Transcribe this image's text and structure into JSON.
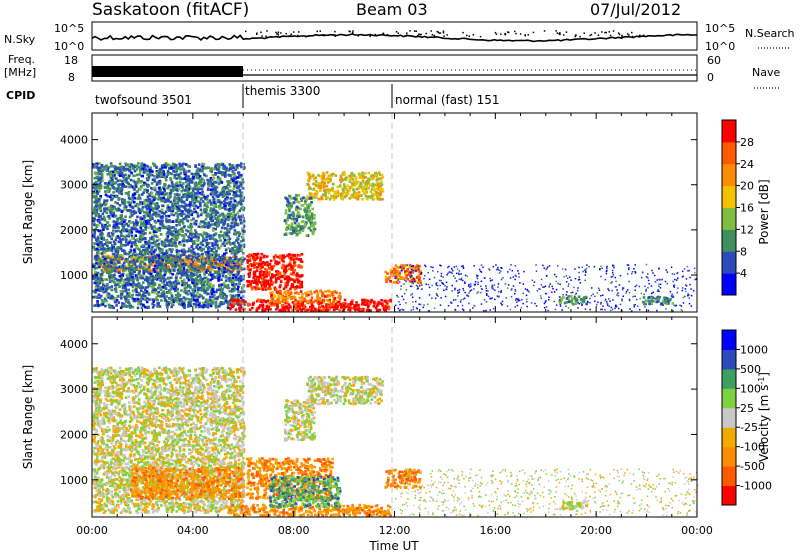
{
  "header": {
    "station": "Saskatoon (fitACF)",
    "beam": "Beam 03",
    "date": "07/Jul/2012"
  },
  "strips": {
    "nsky_label": "N.Sky",
    "nsky_ticks": [
      "10^5",
      "10^0"
    ],
    "nsearch_label": "N.Search",
    "nsearch_ticks": [
      "10^5",
      "10^0"
    ],
    "freq_label_1": "Freq.",
    "freq_label_2": "[MHz]",
    "freq_ticks": [
      "18",
      "8"
    ],
    "nave_label": "Nave",
    "nave_ticks": [
      "60",
      "0"
    ],
    "cpid_label": "CPID",
    "cpid_segments": [
      {
        "label": "twofsound 3501",
        "start_hour": 0,
        "end_hour": 6
      },
      {
        "label": "themis 3300",
        "start_hour": 6,
        "end_hour": 12
      },
      {
        "label": "normal (fast) 151",
        "start_hour": 12,
        "end_hour": 24
      }
    ]
  },
  "chart_data": [
    {
      "type": "heatmap",
      "name": "power",
      "ylabel": "Slant Range [km]",
      "xlabel": "",
      "xlim": [
        0,
        24
      ],
      "ylim": [
        180,
        4590
      ],
      "y_ticks": [
        1000,
        2000,
        3000,
        4000
      ],
      "colorbar_label": "Power [dB]",
      "colorbar_ticks": [
        "28",
        "24",
        "20",
        "16",
        "12",
        "8",
        "4"
      ],
      "colors": [
        "#0000ff",
        "#2a4bb8",
        "#3f8f60",
        "#7fbf3f",
        "#f2c200",
        "#ff8c00",
        "#ff5a00",
        "#ff0000"
      ],
      "regions": [
        {
          "t0": 0.2,
          "t1": 5.9,
          "r0": 1100,
          "r1": 1450,
          "level": 0.7
        },
        {
          "t0": 0.0,
          "t1": 6.0,
          "r0": 300,
          "r1": 3500,
          "level": 0.25
        },
        {
          "t0": 6.1,
          "t1": 8.3,
          "r0": 700,
          "r1": 1500,
          "level": 0.95
        },
        {
          "t0": 5.4,
          "t1": 11.8,
          "r0": 190,
          "r1": 480,
          "level": 0.95
        },
        {
          "t0": 7.0,
          "t1": 9.8,
          "r0": 420,
          "r1": 680,
          "level": 0.75
        },
        {
          "t0": 8.5,
          "t1": 11.5,
          "r0": 2700,
          "r1": 3300,
          "level": 0.55
        },
        {
          "t0": 7.6,
          "t1": 8.8,
          "r0": 1900,
          "r1": 2800,
          "level": 0.35
        },
        {
          "t0": 11.6,
          "t1": 13.0,
          "r0": 850,
          "r1": 1250,
          "level": 0.75
        },
        {
          "t0": 12.0,
          "t1": 24.0,
          "r0": 200,
          "r1": 1250,
          "level": 0.12
        },
        {
          "t0": 18.5,
          "t1": 19.6,
          "r0": 380,
          "r1": 560,
          "level": 0.35
        },
        {
          "t0": 21.8,
          "t1": 23.0,
          "r0": 380,
          "r1": 560,
          "level": 0.3
        }
      ]
    },
    {
      "type": "heatmap",
      "name": "velocity",
      "ylabel": "Slant Range [km]",
      "xlabel": "Time UT",
      "xlim": [
        0,
        24
      ],
      "ylim": [
        180,
        4590
      ],
      "x_ticks": [
        "00:00",
        "04:00",
        "08:00",
        "12:00",
        "16:00",
        "20:00",
        "00:00"
      ],
      "y_ticks": [
        1000,
        2000,
        3000,
        4000
      ],
      "colorbar_label": "Velocity [m s^-1]",
      "colorbar_ticks": [
        "1000",
        "500",
        "100",
        "25",
        "-25",
        "-100",
        "-500",
        "-1000"
      ],
      "colors": [
        "#ff0000",
        "#ff5a00",
        "#ff8c00",
        "#f2a900",
        "#c8c8c8",
        "#7fd23f",
        "#3f9f5f",
        "#2a4bb8",
        "#0000ff"
      ],
      "regions": [
        {
          "t0": 0.0,
          "t1": 6.0,
          "r0": 300,
          "r1": 3500,
          "level": 0.5
        },
        {
          "t0": 1.5,
          "t1": 6.0,
          "r0": 600,
          "r1": 1300,
          "level": 0.3
        },
        {
          "t0": 6.1,
          "t1": 9.5,
          "r0": 600,
          "r1": 1500,
          "level": 0.27
        },
        {
          "t0": 5.4,
          "t1": 11.8,
          "r0": 190,
          "r1": 480,
          "level": 0.28
        },
        {
          "t0": 7.0,
          "t1": 9.8,
          "r0": 420,
          "r1": 1100,
          "level": 0.68
        },
        {
          "t0": 8.5,
          "t1": 11.5,
          "r0": 2700,
          "r1": 3300,
          "level": 0.5
        },
        {
          "t0": 7.6,
          "t1": 8.8,
          "r0": 1900,
          "r1": 2800,
          "level": 0.5
        },
        {
          "t0": 11.6,
          "t1": 13.0,
          "r0": 850,
          "r1": 1250,
          "level": 0.26
        },
        {
          "t0": 12.0,
          "t1": 24.0,
          "r0": 200,
          "r1": 1250,
          "level": 0.5
        },
        {
          "t0": 18.5,
          "t1": 19.6,
          "r0": 380,
          "r1": 560,
          "level": 0.5
        }
      ]
    }
  ]
}
